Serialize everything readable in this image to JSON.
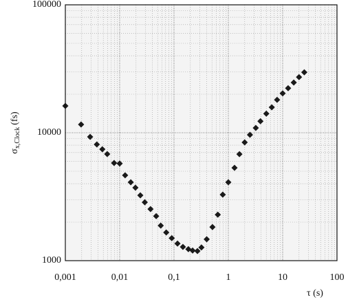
{
  "chart_data": {
    "type": "scatter",
    "x_label": "τ (s)",
    "y_label": "σ",
    "y_label_subscript": "x,Clock",
    "y_label_unit": "(fs)",
    "log_x": true,
    "log_y": true,
    "grid": true,
    "xlim": [
      0.001,
      100
    ],
    "ylim": [
      1000,
      100000
    ],
    "xticks": [
      {
        "value": 0.001,
        "label": "0,001"
      },
      {
        "value": 0.01,
        "label": "0,01"
      },
      {
        "value": 0.1,
        "label": "0,1"
      },
      1,
      10,
      100
    ],
    "yticks": [
      1000,
      10000,
      100000
    ],
    "series": [
      {
        "color": "#1a1a1a",
        "x": [
          0.001,
          0.00195,
          0.00286,
          0.0038,
          0.0048,
          0.0059,
          0.0079,
          0.01,
          0.0126,
          0.016,
          0.0195,
          0.024,
          0.029,
          0.037,
          0.047,
          0.057,
          0.072,
          0.091,
          0.116,
          0.146,
          0.184,
          0.22,
          0.27,
          0.32,
          0.4,
          0.51,
          0.64,
          0.79,
          1.0,
          1.3,
          1.6,
          2.0,
          2.5,
          3.2,
          3.9,
          5.0,
          6.3,
          7.9,
          10,
          12.6,
          16,
          20,
          25
        ],
        "values": [
          16200,
          11600,
          9290,
          8100,
          7430,
          6810,
          5800,
          5750,
          4650,
          4100,
          3720,
          3240,
          2860,
          2530,
          2230,
          1880,
          1660,
          1500,
          1360,
          1280,
          1230,
          1200,
          1190,
          1270,
          1470,
          1830,
          2290,
          3280,
          4100,
          5320,
          6800,
          8410,
          9640,
          10900,
          12300,
          14100,
          15800,
          18100,
          20300,
          22300,
          24700,
          27200,
          29700
        ]
      }
    ]
  }
}
